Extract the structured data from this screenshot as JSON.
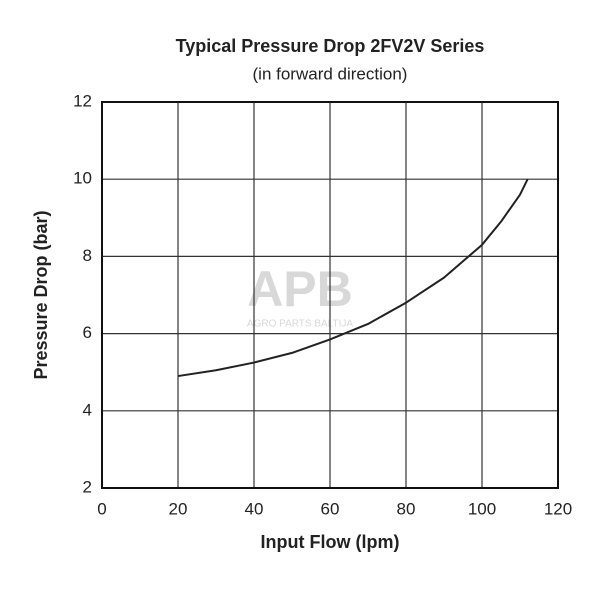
{
  "chart_data": {
    "type": "line",
    "title": "Typical Pressure Drop 2FV2V Series",
    "subtitle": "(in forward direction)",
    "xlabel": "Input Flow (lpm)",
    "ylabel": "Pressure Drop (bar)",
    "watermark": {
      "logo": "APB",
      "text": "AGRO PARTS BALTIJA"
    },
    "x": [
      20,
      30,
      40,
      50,
      60,
      70,
      80,
      90,
      100,
      105,
      110,
      112
    ],
    "series": [
      {
        "color": "#222222",
        "values": [
          4.9,
          5.05,
          5.25,
          5.5,
          5.85,
          6.25,
          6.8,
          7.45,
          8.3,
          8.9,
          9.6,
          10
        ]
      }
    ],
    "xlim": [
      0,
      120
    ],
    "ylim": [
      2,
      12
    ],
    "xticks": [
      0,
      20,
      40,
      60,
      80,
      100,
      120
    ],
    "yticks": [
      2,
      4,
      6,
      8,
      10,
      12
    ],
    "grid": true
  }
}
